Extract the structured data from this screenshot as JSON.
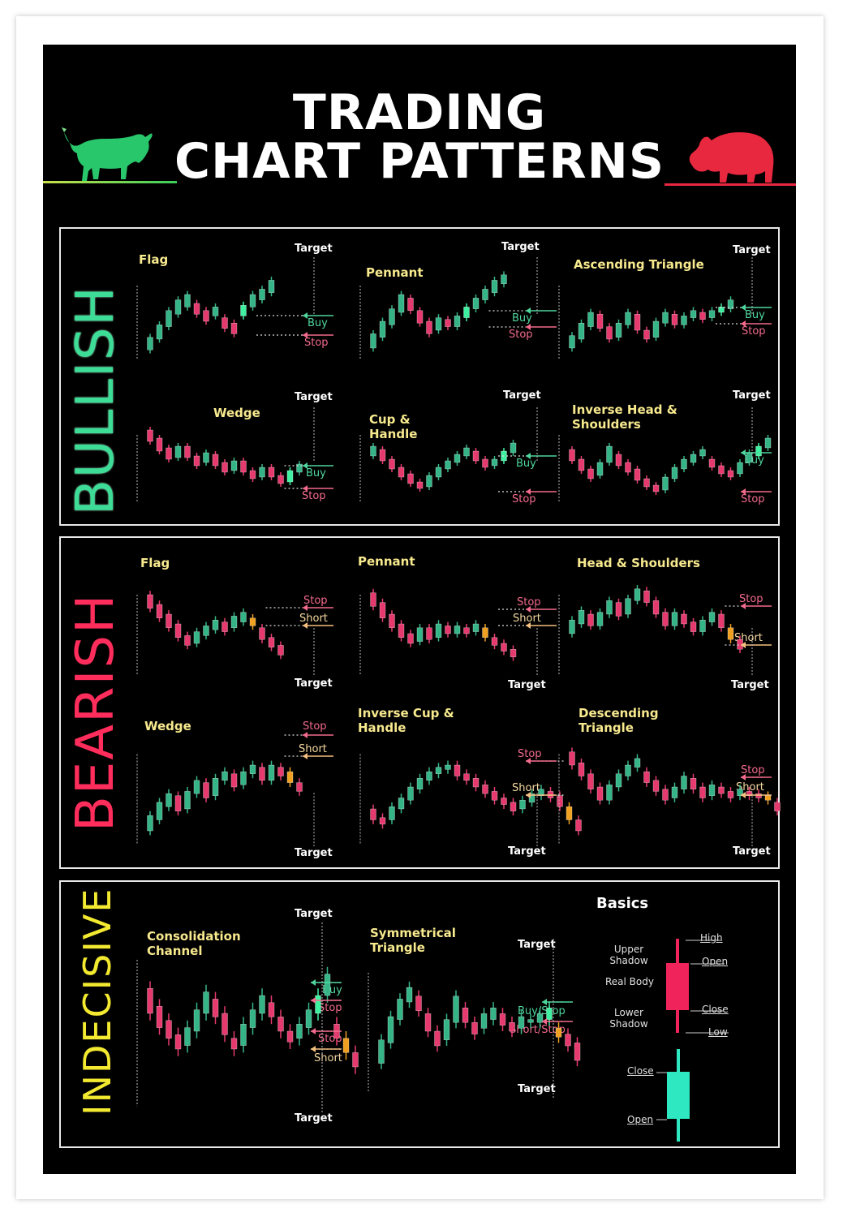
{
  "title": {
    "line1": "TRADING",
    "line2": "CHART PATTERNS"
  },
  "icons": {
    "left": "bull-icon",
    "right": "bear-icon"
  },
  "colors": {
    "bull": "#29c76b",
    "bear": "#e8283f",
    "up_candle": "#35b587",
    "down_candle": "#e63a6e",
    "signal": "#f0a020",
    "bullish_label": "#3ddc97",
    "bearish_label": "#ff2d5b",
    "indecisive_label": "#f2e930",
    "pattern_title": "#f7e98e"
  },
  "sections": [
    {
      "label": "BULLISH",
      "patterns": [
        {
          "title": "Flag",
          "labels": [
            "Target",
            "Buy",
            "Stop"
          ]
        },
        {
          "title": "Pennant",
          "labels": [
            "Target",
            "Buy",
            "Stop"
          ]
        },
        {
          "title": "Ascending Triangle",
          "labels": [
            "Target",
            "Buy",
            "Stop"
          ]
        },
        {
          "title": "Wedge",
          "labels": [
            "Target",
            "Buy",
            "Stop"
          ]
        },
        {
          "title": "Cup & Handle",
          "labels": [
            "Target",
            "Buy",
            "Stop"
          ]
        },
        {
          "title": "Inverse Head & Shoulders",
          "labels": [
            "Target",
            "Buy",
            "Stop"
          ]
        }
      ]
    },
    {
      "label": "BEARISH",
      "patterns": [
        {
          "title": "Flag",
          "labels": [
            "Stop",
            "Short",
            "Target"
          ]
        },
        {
          "title": "Pennant",
          "labels": [
            "Stop",
            "Short",
            "Target"
          ]
        },
        {
          "title": "Head & Shoulders",
          "labels": [
            "Stop",
            "Short",
            "Target"
          ]
        },
        {
          "title": "Wedge",
          "labels": [
            "Stop",
            "Short",
            "Target"
          ]
        },
        {
          "title": "Inverse Cup & Handle",
          "labels": [
            "Stop",
            "Short",
            "Target"
          ]
        },
        {
          "title": "Descending Triangle",
          "labels": [
            "Stop",
            "Short",
            "Target"
          ]
        }
      ]
    },
    {
      "label": "INDECISIVE",
      "patterns": [
        {
          "title": "Consolidation Channel",
          "labels": [
            "Target",
            "Buy",
            "Stop",
            "Stop",
            "Short",
            "Target"
          ]
        },
        {
          "title": "Symmetrical Triangle",
          "labels": [
            "Target",
            "Buy/Stop",
            "Short/Stop",
            "Target"
          ]
        }
      ]
    }
  ],
  "basics": {
    "title": "Basics",
    "bearish_candle": {
      "upper": "Upper Shadow",
      "body": "Real Body",
      "lower": "Lower Shadow",
      "high": "High",
      "open": "Open",
      "close": "Close",
      "low": "Low"
    },
    "bullish_candle": {
      "close": "Close",
      "open": "Open"
    }
  },
  "candles": {
    "bull_flag": [
      [
        0,
        18,
        32,
        1
      ],
      [
        1,
        30,
        46,
        1
      ],
      [
        2,
        44,
        62,
        1
      ],
      [
        3,
        58,
        74,
        1
      ],
      [
        4,
        66,
        80,
        1
      ],
      [
        5,
        70,
        58,
        0
      ],
      [
        6,
        62,
        50,
        0
      ],
      [
        7,
        56,
        66,
        1
      ],
      [
        8,
        54,
        42,
        0
      ],
      [
        9,
        48,
        36,
        0
      ],
      [
        10,
        56,
        68,
        2
      ],
      [
        11,
        66,
        80,
        1
      ],
      [
        12,
        74,
        86,
        1
      ],
      [
        13,
        82,
        96,
        1
      ]
    ],
    "bull_pennant": [
      [
        0,
        20,
        36,
        1
      ],
      [
        1,
        32,
        50,
        1
      ],
      [
        2,
        46,
        64,
        1
      ],
      [
        3,
        60,
        80,
        1
      ],
      [
        4,
        76,
        62,
        0
      ],
      [
        5,
        62,
        48,
        0
      ],
      [
        6,
        50,
        36,
        0
      ],
      [
        7,
        40,
        54,
        1
      ],
      [
        8,
        52,
        44,
        0
      ],
      [
        9,
        44,
        56,
        1
      ],
      [
        10,
        54,
        66,
        2
      ],
      [
        11,
        64,
        76,
        1
      ],
      [
        12,
        74,
        86,
        1
      ],
      [
        13,
        82,
        96,
        1
      ],
      [
        14,
        92,
        102,
        1
      ]
    ],
    "asc_triangle": [
      [
        0,
        20,
        34,
        1
      ],
      [
        1,
        30,
        48,
        1
      ],
      [
        2,
        44,
        60,
        1
      ],
      [
        3,
        58,
        42,
        0
      ],
      [
        4,
        44,
        30,
        0
      ],
      [
        5,
        32,
        48,
        1
      ],
      [
        6,
        46,
        60,
        1
      ],
      [
        7,
        58,
        40,
        0
      ],
      [
        8,
        40,
        30,
        0
      ],
      [
        9,
        32,
        50,
        1
      ],
      [
        10,
        48,
        60,
        1
      ],
      [
        11,
        58,
        46,
        0
      ],
      [
        12,
        46,
        56,
        1
      ],
      [
        13,
        54,
        62,
        1
      ],
      [
        14,
        60,
        52,
        0
      ],
      [
        15,
        54,
        62,
        1
      ],
      [
        16,
        60,
        66,
        2
      ],
      [
        17,
        64,
        74,
        1
      ]
    ],
    "bull_wedge": [
      [
        0,
        96,
        82,
        0
      ],
      [
        1,
        86,
        70,
        0
      ],
      [
        2,
        74,
        60,
        0
      ],
      [
        3,
        62,
        76,
        1
      ],
      [
        4,
        76,
        62,
        0
      ],
      [
        5,
        64,
        52,
        0
      ],
      [
        6,
        56,
        68,
        1
      ],
      [
        7,
        66,
        52,
        0
      ],
      [
        8,
        56,
        44,
        0
      ],
      [
        9,
        46,
        58,
        1
      ],
      [
        10,
        58,
        44,
        0
      ],
      [
        11,
        46,
        36,
        0
      ],
      [
        12,
        38,
        50,
        1
      ],
      [
        13,
        50,
        38,
        0
      ],
      [
        14,
        40,
        30,
        0
      ],
      [
        15,
        32,
        46,
        2
      ],
      [
        16,
        44,
        54,
        1
      ]
    ],
    "cup_handle": [
      [
        0,
        64,
        76,
        1
      ],
      [
        1,
        72,
        58,
        0
      ],
      [
        2,
        60,
        48,
        0
      ],
      [
        3,
        50,
        38,
        0
      ],
      [
        4,
        42,
        30,
        0
      ],
      [
        5,
        32,
        24,
        0
      ],
      [
        6,
        26,
        40,
        1
      ],
      [
        7,
        38,
        50,
        1
      ],
      [
        8,
        48,
        58,
        1
      ],
      [
        9,
        56,
        66,
        1
      ],
      [
        10,
        64,
        74,
        1
      ],
      [
        11,
        70,
        58,
        0
      ],
      [
        12,
        60,
        50,
        0
      ],
      [
        13,
        52,
        60,
        1
      ],
      [
        14,
        58,
        70,
        2
      ],
      [
        15,
        68,
        80,
        1
      ]
    ],
    "inv_hs": [
      [
        0,
        72,
        58,
        0
      ],
      [
        1,
        60,
        46,
        0
      ],
      [
        2,
        48,
        36,
        0
      ],
      [
        3,
        40,
        56,
        1
      ],
      [
        4,
        56,
        76,
        1
      ],
      [
        5,
        66,
        52,
        0
      ],
      [
        6,
        56,
        44,
        0
      ],
      [
        7,
        48,
        34,
        0
      ],
      [
        8,
        36,
        26,
        0
      ],
      [
        9,
        28,
        20,
        0
      ],
      [
        10,
        22,
        38,
        1
      ],
      [
        11,
        36,
        50,
        1
      ],
      [
        12,
        48,
        60,
        1
      ],
      [
        13,
        56,
        66,
        1
      ],
      [
        14,
        64,
        72,
        1
      ],
      [
        15,
        60,
        50,
        0
      ],
      [
        16,
        52,
        42,
        0
      ],
      [
        17,
        46,
        38,
        0
      ],
      [
        18,
        42,
        56,
        1
      ],
      [
        19,
        56,
        68,
        1
      ],
      [
        20,
        64,
        76,
        2
      ],
      [
        21,
        74,
        86,
        1
      ]
    ],
    "bear_flag": [
      [
        0,
        90,
        76,
        0
      ],
      [
        1,
        80,
        66,
        0
      ],
      [
        2,
        70,
        56,
        0
      ],
      [
        3,
        60,
        46,
        0
      ],
      [
        4,
        48,
        38,
        0
      ],
      [
        5,
        40,
        52,
        1
      ],
      [
        6,
        48,
        58,
        1
      ],
      [
        7,
        54,
        64,
        1
      ],
      [
        8,
        62,
        52,
        0
      ],
      [
        9,
        56,
        68,
        1
      ],
      [
        10,
        62,
        72,
        1
      ],
      [
        11,
        66,
        58,
        3
      ],
      [
        12,
        56,
        44,
        0
      ],
      [
        13,
        46,
        36,
        0
      ],
      [
        14,
        38,
        28,
        0
      ]
    ],
    "bear_pennant": [
      [
        0,
        92,
        78,
        0
      ],
      [
        1,
        82,
        66,
        0
      ],
      [
        2,
        70,
        56,
        0
      ],
      [
        3,
        60,
        46,
        0
      ],
      [
        4,
        50,
        40,
        0
      ],
      [
        5,
        42,
        56,
        1
      ],
      [
        6,
        56,
        44,
        0
      ],
      [
        7,
        46,
        60,
        1
      ],
      [
        8,
        58,
        50,
        0
      ],
      [
        9,
        50,
        58,
        1
      ],
      [
        10,
        56,
        50,
        0
      ],
      [
        11,
        52,
        60,
        1
      ],
      [
        12,
        56,
        46,
        3
      ],
      [
        13,
        46,
        38,
        0
      ],
      [
        14,
        40,
        32,
        0
      ],
      [
        15,
        34,
        26,
        0
      ]
    ],
    "hs": [
      [
        0,
        50,
        64,
        1
      ],
      [
        1,
        60,
        74,
        1
      ],
      [
        2,
        70,
        58,
        0
      ],
      [
        3,
        58,
        72,
        1
      ],
      [
        4,
        70,
        84,
        1
      ],
      [
        5,
        82,
        68,
        0
      ],
      [
        6,
        70,
        86,
        1
      ],
      [
        7,
        84,
        96,
        1
      ],
      [
        8,
        94,
        82,
        0
      ],
      [
        9,
        84,
        70,
        0
      ],
      [
        10,
        72,
        58,
        0
      ],
      [
        11,
        58,
        72,
        1
      ],
      [
        12,
        70,
        60,
        0
      ],
      [
        13,
        62,
        52,
        0
      ],
      [
        14,
        52,
        64,
        1
      ],
      [
        15,
        62,
        72,
        1
      ],
      [
        16,
        70,
        56,
        0
      ],
      [
        17,
        56,
        44,
        3
      ],
      [
        18,
        44,
        34,
        0
      ]
    ],
    "bear_wedge": [
      [
        0,
        20,
        34,
        1
      ],
      [
        1,
        30,
        46,
        1
      ],
      [
        2,
        42,
        54,
        1
      ],
      [
        3,
        52,
        38,
        0
      ],
      [
        4,
        40,
        56,
        1
      ],
      [
        5,
        54,
        66,
        1
      ],
      [
        6,
        64,
        50,
        0
      ],
      [
        7,
        52,
        68,
        1
      ],
      [
        8,
        66,
        74,
        1
      ],
      [
        9,
        72,
        60,
        0
      ],
      [
        10,
        62,
        74,
        1
      ],
      [
        11,
        72,
        80,
        1
      ],
      [
        12,
        78,
        66,
        0
      ],
      [
        13,
        66,
        80,
        1
      ],
      [
        14,
        78,
        70,
        0
      ],
      [
        15,
        74,
        64,
        3
      ],
      [
        16,
        64,
        56,
        0
      ]
    ],
    "inv_cup": [
      [
        0,
        40,
        30,
        0
      ],
      [
        1,
        32,
        26,
        0
      ],
      [
        2,
        30,
        42,
        1
      ],
      [
        3,
        40,
        50,
        1
      ],
      [
        4,
        48,
        60,
        1
      ],
      [
        5,
        58,
        68,
        1
      ],
      [
        6,
        66,
        74,
        1
      ],
      [
        7,
        72,
        78,
        1
      ],
      [
        8,
        76,
        80,
        1
      ],
      [
        9,
        80,
        70,
        0
      ],
      [
        10,
        72,
        66,
        0
      ],
      [
        11,
        68,
        60,
        0
      ],
      [
        12,
        62,
        54,
        0
      ],
      [
        13,
        56,
        48,
        0
      ],
      [
        14,
        50,
        44,
        0
      ],
      [
        15,
        46,
        38,
        0
      ],
      [
        16,
        40,
        48,
        1
      ],
      [
        17,
        46,
        54,
        1
      ],
      [
        18,
        52,
        58,
        1
      ],
      [
        19,
        56,
        50,
        0
      ],
      [
        20,
        52,
        42,
        0
      ],
      [
        21,
        42,
        30,
        3
      ],
      [
        22,
        30,
        20,
        0
      ]
    ],
    "desc_triangle": [
      [
        0,
        92,
        80,
        0
      ],
      [
        1,
        82,
        70,
        0
      ],
      [
        2,
        72,
        58,
        0
      ],
      [
        3,
        60,
        48,
        0
      ],
      [
        4,
        48,
        62,
        1
      ],
      [
        5,
        60,
        72,
        1
      ],
      [
        6,
        70,
        80,
        1
      ],
      [
        7,
        78,
        86,
        1
      ],
      [
        8,
        74,
        64,
        0
      ],
      [
        9,
        66,
        56,
        0
      ],
      [
        10,
        58,
        48,
        0
      ],
      [
        11,
        50,
        60,
        1
      ],
      [
        12,
        58,
        70,
        1
      ],
      [
        13,
        68,
        58,
        0
      ],
      [
        14,
        60,
        50,
        0
      ],
      [
        15,
        52,
        62,
        1
      ],
      [
        16,
        60,
        54,
        0
      ],
      [
        17,
        56,
        50,
        0
      ],
      [
        18,
        52,
        58,
        1
      ],
      [
        19,
        56,
        52,
        0
      ],
      [
        20,
        54,
        50,
        0
      ],
      [
        21,
        52,
        48,
        3
      ],
      [
        22,
        46,
        38,
        0
      ]
    ],
    "consolidation": [
      [
        0,
        74,
        60,
        0
      ],
      [
        1,
        64,
        52,
        0
      ],
      [
        2,
        56,
        46,
        0
      ],
      [
        3,
        48,
        40,
        0
      ],
      [
        4,
        42,
        52,
        1
      ],
      [
        5,
        50,
        62,
        1
      ],
      [
        6,
        60,
        72,
        1
      ],
      [
        7,
        68,
        58,
        0
      ],
      [
        8,
        60,
        48,
        0
      ],
      [
        9,
        46,
        40,
        0
      ],
      [
        10,
        42,
        54,
        1
      ],
      [
        11,
        52,
        62,
        1
      ],
      [
        12,
        60,
        70,
        1
      ],
      [
        13,
        66,
        58,
        0
      ],
      [
        14,
        58,
        50,
        0
      ],
      [
        15,
        50,
        44,
        0
      ],
      [
        16,
        46,
        54,
        1
      ],
      [
        17,
        52,
        62,
        1
      ],
      [
        18,
        60,
        70,
        2
      ],
      [
        19,
        70,
        82,
        1
      ],
      [
        20,
        54,
        46,
        0
      ],
      [
        21,
        46,
        38,
        3
      ],
      [
        22,
        38,
        30,
        0
      ]
    ],
    "sym_triangle": [
      [
        0,
        28,
        44,
        1
      ],
      [
        1,
        42,
        60,
        1
      ],
      [
        2,
        58,
        72,
        1
      ],
      [
        3,
        70,
        80,
        1
      ],
      [
        4,
        74,
        64,
        0
      ],
      [
        5,
        62,
        50,
        0
      ],
      [
        6,
        50,
        40,
        0
      ],
      [
        7,
        44,
        58,
        1
      ],
      [
        8,
        56,
        74,
        1
      ],
      [
        9,
        66,
        56,
        0
      ],
      [
        10,
        56,
        48,
        0
      ],
      [
        11,
        52,
        62,
        1
      ],
      [
        12,
        58,
        66,
        1
      ],
      [
        13,
        62,
        54,
        0
      ],
      [
        14,
        56,
        50,
        0
      ],
      [
        15,
        52,
        60,
        1
      ],
      [
        16,
        56,
        58,
        1
      ],
      [
        17,
        56,
        62,
        1
      ],
      [
        18,
        58,
        66,
        2
      ],
      [
        19,
        52,
        46,
        3
      ],
      [
        20,
        48,
        40,
        0
      ],
      [
        21,
        42,
        30,
        0
      ]
    ]
  }
}
